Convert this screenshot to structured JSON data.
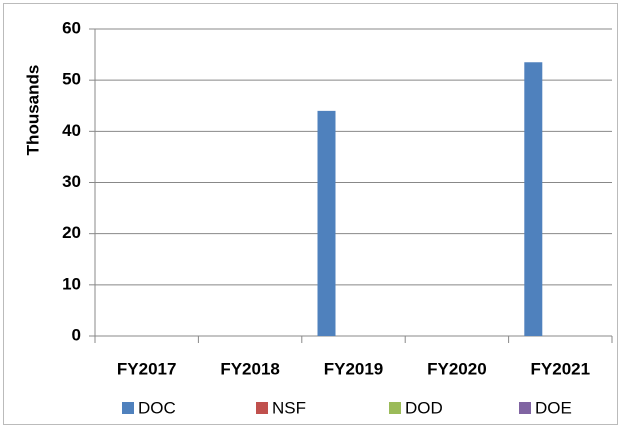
{
  "chart_data": {
    "type": "bar",
    "y_label": "Thousands",
    "categories": [
      "FY2017",
      "FY2018",
      "FY2019",
      "FY2020",
      "FY2021"
    ],
    "series": [
      {
        "name": "DOC",
        "color": "#4f81bd",
        "values": [
          0,
          0,
          44,
          0,
          53.5
        ]
      },
      {
        "name": "NSF",
        "color": "#c0504d",
        "values": [
          0,
          0,
          0,
          0,
          0
        ]
      },
      {
        "name": "DOD",
        "color": "#9bbb59",
        "values": [
          0,
          0,
          0,
          0,
          0
        ]
      },
      {
        "name": "DOE",
        "color": "#8064a2",
        "values": [
          0,
          0,
          0,
          0,
          0
        ]
      }
    ],
    "ylim": [
      0,
      60
    ],
    "yticks": [
      0,
      10,
      20,
      30,
      40,
      50,
      60
    ],
    "grid": true,
    "legend": "bottom"
  }
}
